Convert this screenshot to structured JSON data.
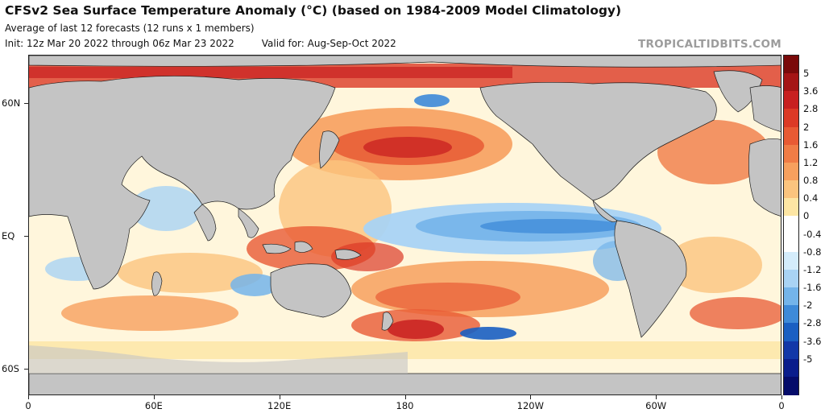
{
  "header": {
    "title": "CFSv2 Sea Surface Temperature Anomaly (°C) (based on 1984-2009 Model Climatology)",
    "subtitle": "Average of last 12 forecasts (12 runs x 1 members)",
    "init": "Init: 12z Mar 20 2022 through 06z Mar 23 2022",
    "valid": "Valid for: Aug-Sep-Oct 2022",
    "credit": "TROPICALTIDBITS.COM"
  },
  "axes": {
    "lat_labels": [
      {
        "label": "60N",
        "value": 60
      },
      {
        "label": "EQ",
        "value": 0
      },
      {
        "label": "60S",
        "value": -60
      }
    ],
    "lon_labels": [
      {
        "label": "0",
        "value": 0
      },
      {
        "label": "60E",
        "value": 60
      },
      {
        "label": "120E",
        "value": 120
      },
      {
        "label": "180",
        "value": 180
      },
      {
        "label": "120W",
        "value": 240
      },
      {
        "label": "60W",
        "value": 300
      },
      {
        "label": "0",
        "value": 360
      }
    ]
  },
  "colorbar": {
    "labels": [
      "5",
      "3.6",
      "2.8",
      "2",
      "1.6",
      "1.2",
      "0.8",
      "0.4",
      "0",
      "-0.4",
      "-0.8",
      "-1.2",
      "-1.6",
      "-2",
      "-2.8",
      "-3.6",
      "-5"
    ],
    "colors": [
      "#7a0a0a",
      "#a51515",
      "#c82020",
      "#dc3a26",
      "#e85a34",
      "#f07c46",
      "#f7a05e",
      "#fbc47e",
      "#fde6a4",
      "#ffffff",
      "#ffffff",
      "#d4ecfb",
      "#a9d3f4",
      "#74b4ea",
      "#3e8ad8",
      "#1a5fc2",
      "#1238a8",
      "#0a1d8c",
      "#050c6a"
    ]
  },
  "map_colors": {
    "land": "#c4c4c4",
    "border": "#1e1e1e",
    "neutral": "#fff6dc"
  }
}
